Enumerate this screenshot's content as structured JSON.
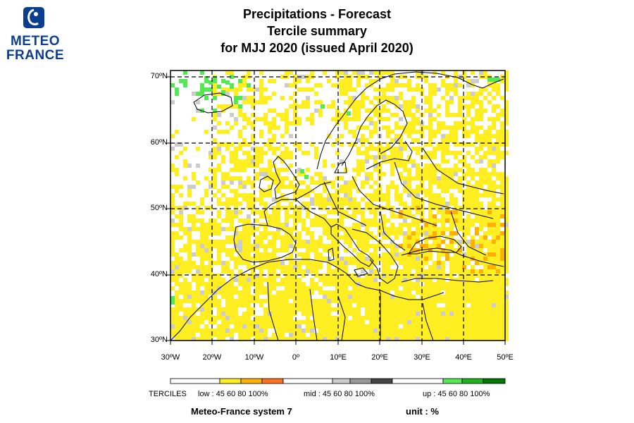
{
  "logo": {
    "line1": "METEO",
    "line2": "FRANCE",
    "color": "#0b3e8e"
  },
  "title": {
    "line1": "Precipitations   -   Forecast",
    "line2": "Tercile summary",
    "line3": "for MJJ 2020   (issued April 2020)"
  },
  "map": {
    "lat_labels": [
      "70ºN",
      "60ºN",
      "50ºN",
      "40ºN",
      "30ºN"
    ],
    "lon_labels": [
      "30ºW",
      "20ºW",
      "10ºW",
      "0º",
      "10ºE",
      "20ºE",
      "30ºE",
      "40ºE",
      "50ºE"
    ],
    "lat_range": [
      30,
      71
    ],
    "lon_range": [
      -30,
      50
    ],
    "grid": true,
    "colors": {
      "low_45": "#ffee22",
      "low_60": "#ffb000",
      "low_80": "#ff7020",
      "mid_45": "#cccccc",
      "mid_60": "#999999",
      "mid_80": "#444444",
      "up_45": "#55e855",
      "up_60": "#1db51d",
      "up_80": "#007700"
    }
  },
  "legend": {
    "label": "TERCILES",
    "low": "low : 45   60      80   100%",
    "mid": "mid : 45    60      80   100%",
    "up": "up : 45   60      80   100%"
  },
  "footer": {
    "system": "Meteo-France system 7",
    "unit": "unit : %"
  }
}
